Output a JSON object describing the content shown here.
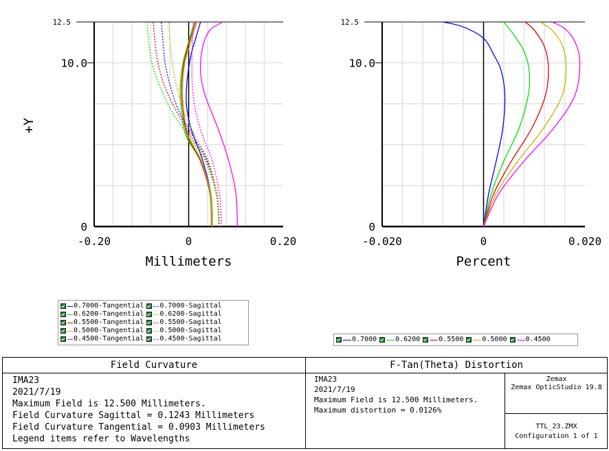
{
  "chart_data": [
    {
      "type": "line",
      "name_id": "field-curvature",
      "xlabel": "Millimeters",
      "ylabel": "+Y",
      "xlim": [
        -0.2,
        0.2
      ],
      "ylim": [
        0,
        12.5
      ],
      "x_ticks": [
        "-0.20",
        "0",
        "0.20"
      ],
      "y_ticks": [
        "0",
        "10.0",
        "12.5"
      ],
      "grid": true,
      "series": [
        {
          "name": "0.7000-Tangential",
          "color": "#0000ff",
          "style": "solid",
          "points": [
            [
              0.05,
              0
            ],
            [
              0.047,
              2
            ],
            [
              0.03,
              4
            ],
            [
              0.005,
              6
            ],
            [
              -0.005,
              7.5
            ],
            [
              -0.003,
              9
            ],
            [
              0.005,
              10.5
            ],
            [
              0.015,
              11.5
            ],
            [
              0.025,
              12.5
            ]
          ]
        },
        {
          "name": "0.6200-Tangential",
          "color": "#00e000",
          "style": "solid",
          "points": [
            [
              0.05,
              0
            ],
            [
              0.047,
              2
            ],
            [
              0.025,
              4
            ],
            [
              -0.005,
              5.5
            ],
            [
              -0.015,
              7
            ],
            [
              -0.018,
              8.5
            ],
            [
              -0.012,
              10
            ],
            [
              0.0,
              11.3
            ],
            [
              0.012,
              12.5
            ]
          ]
        },
        {
          "name": "0.5500-Tangential",
          "color": "#e00000",
          "style": "solid",
          "points": [
            [
              0.048,
              0
            ],
            [
              0.045,
              2
            ],
            [
              0.025,
              4
            ],
            [
              -0.002,
              5.5
            ],
            [
              -0.012,
              7
            ],
            [
              -0.015,
              8.5
            ],
            [
              -0.01,
              10
            ],
            [
              0.002,
              11.3
            ],
            [
              0.015,
              12.5
            ]
          ]
        },
        {
          "name": "0.5000-Tangential",
          "color": "#c8b400",
          "style": "solid",
          "points": [
            [
              0.049,
              0
            ],
            [
              0.046,
              2
            ],
            [
              0.027,
              4
            ],
            [
              0.0,
              5.5
            ],
            [
              -0.01,
              7
            ],
            [
              -0.013,
              8.5
            ],
            [
              -0.008,
              10
            ],
            [
              0.005,
              11.3
            ],
            [
              0.018,
              12.5
            ]
          ]
        },
        {
          "name": "0.4500-Tangential",
          "color": "#ff00ff",
          "style": "solid",
          "points": [
            [
              0.103,
              0
            ],
            [
              0.1,
              2
            ],
            [
              0.085,
              4
            ],
            [
              0.062,
              6
            ],
            [
              0.035,
              8
            ],
            [
              0.025,
              9.5
            ],
            [
              0.03,
              11
            ],
            [
              0.045,
              12
            ],
            [
              0.072,
              12.5
            ]
          ]
        },
        {
          "name": "0.7000-Sagittal",
          "color": "#0000ff",
          "style": "dotted",
          "points": [
            [
              0.066,
              0
            ],
            [
              0.06,
              2
            ],
            [
              0.04,
              4
            ],
            [
              0.01,
              5.5
            ],
            [
              -0.02,
              7
            ],
            [
              -0.038,
              8.5
            ],
            [
              -0.05,
              10
            ],
            [
              -0.055,
              11.5
            ],
            [
              -0.058,
              12.5
            ]
          ]
        },
        {
          "name": "0.6200-Sagittal",
          "color": "#00e000",
          "style": "dotted",
          "points": [
            [
              0.064,
              0
            ],
            [
              0.058,
              2
            ],
            [
              0.035,
              4
            ],
            [
              0.0,
              5.5
            ],
            [
              -0.035,
              7
            ],
            [
              -0.06,
              8.5
            ],
            [
              -0.078,
              10
            ],
            [
              -0.085,
              11.5
            ],
            [
              -0.088,
              12.5
            ]
          ]
        },
        {
          "name": "0.5500-Sagittal",
          "color": "#e00000",
          "style": "dotted",
          "points": [
            [
              0.065,
              0
            ],
            [
              0.059,
              2
            ],
            [
              0.038,
              4
            ],
            [
              0.005,
              5.5
            ],
            [
              -0.025,
              7
            ],
            [
              -0.05,
              8.5
            ],
            [
              -0.065,
              10
            ],
            [
              -0.072,
              11.5
            ],
            [
              -0.075,
              12.5
            ]
          ]
        },
        {
          "name": "0.5000-Sagittal",
          "color": "#c8b400",
          "style": "dotted",
          "points": [
            [
              0.066,
              0
            ],
            [
              0.06,
              2
            ],
            [
              0.042,
              4
            ],
            [
              0.015,
              5.5
            ],
            [
              -0.01,
              7
            ],
            [
              -0.025,
              8.5
            ],
            [
              -0.035,
              10
            ],
            [
              -0.04,
              11.5
            ],
            [
              -0.042,
              12.5
            ]
          ]
        },
        {
          "name": "0.4500-Sagittal",
          "color": "#ff00ff",
          "style": "dotted",
          "points": [
            [
              0.07,
              0
            ],
            [
              0.065,
              2
            ],
            [
              0.05,
              4
            ],
            [
              0.03,
              5.5
            ],
            [
              0.015,
              7
            ],
            [
              0.008,
              8.5
            ],
            [
              0.007,
              10
            ],
            [
              0.008,
              11.5
            ],
            [
              0.01,
              12.5
            ]
          ]
        }
      ]
    },
    {
      "type": "line",
      "name_id": "distortion",
      "xlabel": "Percent",
      "ylabel": "",
      "xlim": [
        -0.02,
        0.02
      ],
      "ylim": [
        0,
        12.5
      ],
      "x_ticks": [
        "-0.020",
        "0",
        "0.020"
      ],
      "y_ticks": [
        "0",
        "10.0",
        "12.5"
      ],
      "grid": true,
      "series": [
        {
          "name": "0.7000",
          "color": "#0000ff",
          "style": "solid",
          "points": [
            [
              0,
              0
            ],
            [
              0.001,
              2
            ],
            [
              0.0025,
              4
            ],
            [
              0.0038,
              6
            ],
            [
              0.0042,
              8
            ],
            [
              0.0035,
              9.5
            ],
            [
              0.002,
              10.5
            ],
            [
              0.0,
              11.5
            ],
            [
              -0.004,
              12.2
            ],
            [
              -0.008,
              12.5
            ]
          ]
        },
        {
          "name": "0.6200",
          "color": "#00e000",
          "style": "solid",
          "points": [
            [
              0,
              0
            ],
            [
              0.0015,
              2
            ],
            [
              0.004,
              4
            ],
            [
              0.007,
              6
            ],
            [
              0.0088,
              8
            ],
            [
              0.009,
              9.5
            ],
            [
              0.008,
              10.7
            ],
            [
              0.006,
              11.7
            ],
            [
              0.004,
              12.5
            ]
          ]
        },
        {
          "name": "0.5500",
          "color": "#e00000",
          "style": "solid",
          "points": [
            [
              0,
              0
            ],
            [
              0.002,
              2
            ],
            [
              0.0055,
              4
            ],
            [
              0.0095,
              6
            ],
            [
              0.0122,
              8
            ],
            [
              0.0128,
              9.7
            ],
            [
              0.012,
              11
            ],
            [
              0.01,
              12
            ],
            [
              0.0082,
              12.5
            ]
          ]
        },
        {
          "name": "0.5000",
          "color": "#c8b400",
          "style": "solid",
          "points": [
            [
              0,
              0
            ],
            [
              0.0025,
              2
            ],
            [
              0.0068,
              4
            ],
            [
              0.0118,
              6
            ],
            [
              0.0155,
              8
            ],
            [
              0.0163,
              9.8
            ],
            [
              0.0155,
              11.1
            ],
            [
              0.0135,
              12
            ],
            [
              0.0112,
              12.5
            ]
          ]
        },
        {
          "name": "0.4500",
          "color": "#ff00ff",
          "style": "solid",
          "points": [
            [
              0,
              0
            ],
            [
              0.003,
              2
            ],
            [
              0.008,
              4
            ],
            [
              0.0138,
              6
            ],
            [
              0.018,
              8
            ],
            [
              0.019,
              10
            ],
            [
              0.018,
              11.3
            ],
            [
              0.016,
              12.1
            ],
            [
              0.0135,
              12.5
            ]
          ]
        }
      ]
    }
  ],
  "legend_left": {
    "rows": [
      [
        {
          "label": "0.7000-Tangential",
          "color": "#0000ff",
          "dotted": false
        },
        {
          "label": "0.7000-Sagittal",
          "color": "#0000ff",
          "dotted": true
        }
      ],
      [
        {
          "label": "0.6200-Tangential",
          "color": "#00e000",
          "dotted": false
        },
        {
          "label": "0.6200-Sagittal",
          "color": "#00e000",
          "dotted": true
        }
      ],
      [
        {
          "label": "0.5500-Tangential",
          "color": "#e00000",
          "dotted": false
        },
        {
          "label": "0.5500-Sagittal",
          "color": "#e00000",
          "dotted": true
        }
      ],
      [
        {
          "label": "0.5000-Tangential",
          "color": "#c8b400",
          "dotted": false
        },
        {
          "label": "0.5000-Sagittal",
          "color": "#c8b400",
          "dotted": true
        }
      ],
      [
        {
          "label": "0.4500-Tangential",
          "color": "#ff00ff",
          "dotted": false
        },
        {
          "label": "0.4500-Sagittal",
          "color": "#ff00ff",
          "dotted": true
        }
      ]
    ]
  },
  "legend_right": {
    "items": [
      {
        "label": "0.7000",
        "color": "#0000ff"
      },
      {
        "label": "0.6200",
        "color": "#00e000"
      },
      {
        "label": "0.5500",
        "color": "#e00000"
      },
      {
        "label": "0.5000",
        "color": "#c8b400"
      },
      {
        "label": "0.4500",
        "color": "#ff00ff"
      }
    ]
  },
  "panel_left": {
    "title": "Field Curvature",
    "lines": [
      "IMA23",
      "2021/7/19",
      "Maximum Field is 12.500 Millimeters.",
      "Field Curvature Sagittal = 0.1243 Millimeters",
      "Field Curvature Tangential = 0.0903 Millimeters",
      "Legend items refer to Wavelengths"
    ]
  },
  "panel_right": {
    "title": "F-Tan(Theta) Distortion",
    "lines": [
      "IMA23",
      "2021/7/19",
      "Maximum Field is 12.500 Millimeters.",
      "Maximum distortion = 0.0126%"
    ],
    "info_top": [
      "Zemax",
      "Zemax OpticStudio 19.8"
    ],
    "info_bottom": [
      "TTL_23.ZMX",
      "Configuration 1 of 1"
    ]
  }
}
